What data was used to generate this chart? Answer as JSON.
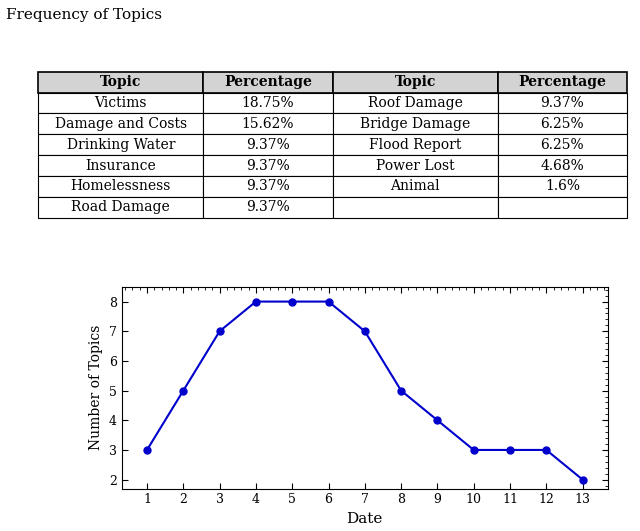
{
  "title": "Frequency of Topics",
  "table": {
    "left_col": [
      "Victims",
      "Damage and Costs",
      "Drinking Water",
      "Insurance",
      "Homelessness",
      "Road Damage"
    ],
    "left_pct": [
      "18.75%",
      "15.62%",
      "9.37%",
      "9.37%",
      "9.37%",
      "9.37%"
    ],
    "right_col": [
      "Roof Damage",
      "Bridge Damage",
      "Flood Report",
      "Power Lost",
      "Animal",
      ""
    ],
    "right_pct": [
      "9.37%",
      "6.25%",
      "6.25%",
      "4.68%",
      "1.6%",
      ""
    ],
    "headers": [
      "Topic",
      "Percentage",
      "Topic",
      "Percentage"
    ],
    "header_color": "#d3d3d3"
  },
  "line": {
    "x": [
      1,
      2,
      3,
      4,
      5,
      6,
      7,
      8,
      9,
      10,
      11,
      12,
      13
    ],
    "y": [
      3,
      5,
      7,
      8,
      8,
      8,
      7,
      5,
      4,
      3,
      3,
      3,
      2
    ],
    "color": "#0000cc",
    "marker": "o",
    "xlabel": "Date",
    "ylabel": "Number of Topics",
    "yticks": [
      2,
      3,
      4,
      5,
      6,
      7,
      8
    ],
    "xticks": [
      1,
      2,
      3,
      4,
      5,
      6,
      7,
      8,
      9,
      10,
      11,
      12,
      13
    ]
  }
}
